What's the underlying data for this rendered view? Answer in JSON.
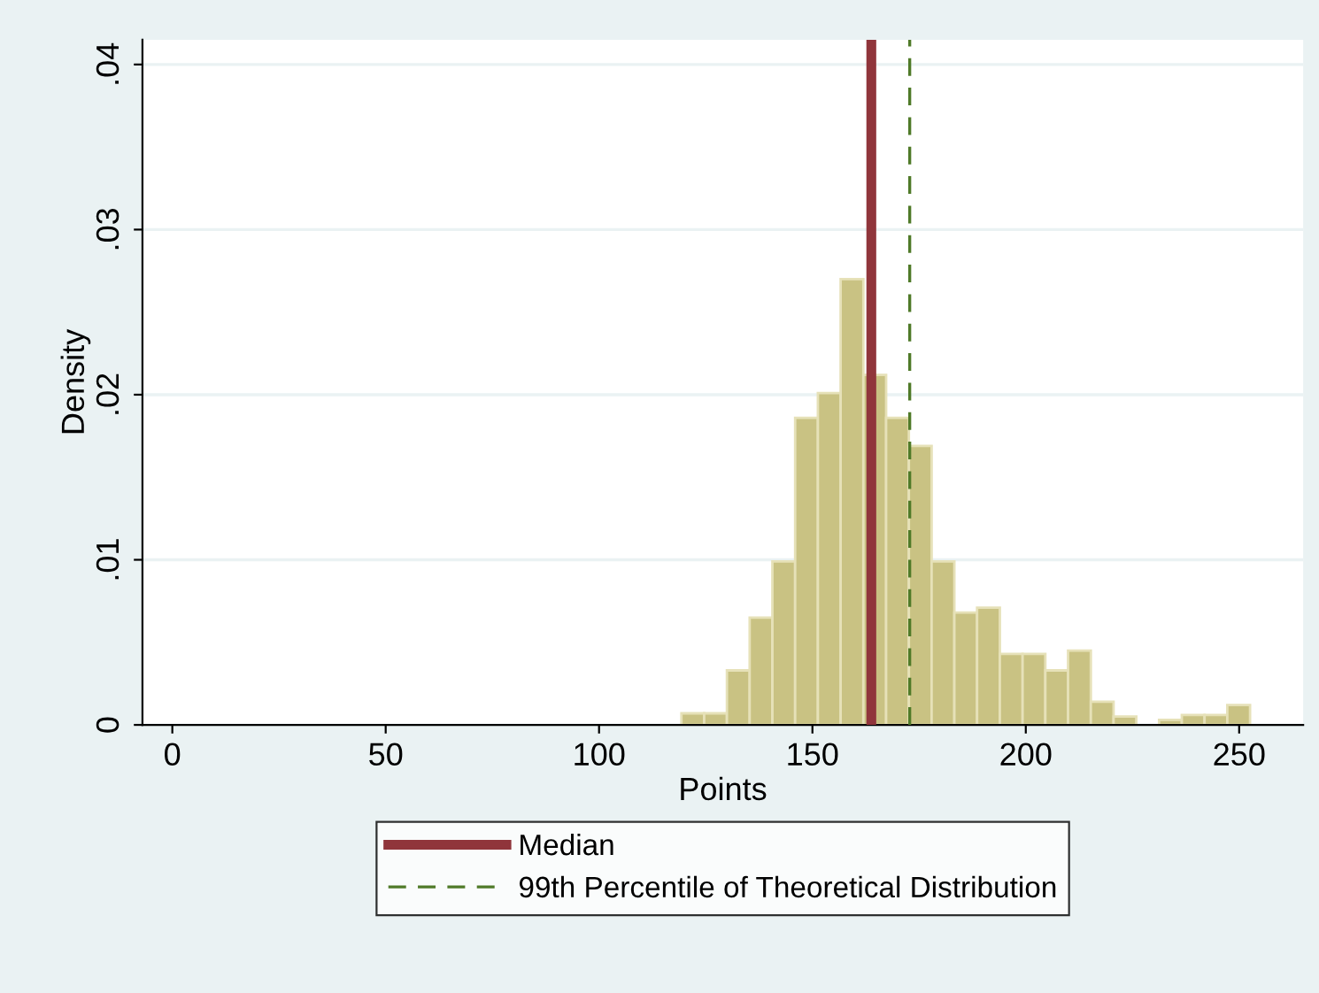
{
  "chart_data": {
    "type": "histogram",
    "xlabel": "Points",
    "ylabel": "Density",
    "bins": [
      119.3,
      124.63,
      129.96,
      135.29,
      140.62,
      145.95,
      151.28,
      156.61,
      161.94,
      167.27,
      172.6,
      177.93,
      183.26,
      188.59,
      193.92,
      199.25,
      204.58,
      209.91,
      215.24,
      220.57,
      225.9,
      231.23,
      236.56,
      241.89,
      247.22,
      252.55
    ],
    "values": [
      0.0007,
      0.0007,
      0.0033,
      0.0065,
      0.0099,
      0.0186,
      0.0201,
      0.027,
      0.0212,
      0.0186,
      0.0169,
      0.0099,
      0.0068,
      0.0071,
      0.0043,
      0.0043,
      0.0033,
      0.0045,
      0.0014,
      0.0005,
      0.0,
      0.0003,
      0.0006,
      0.0006,
      0.0012
    ],
    "color": "#c9c283",
    "xlim": [
      -7,
      265
    ],
    "ylim": [
      0,
      0.0415
    ],
    "xticks": [
      0,
      50,
      100,
      150,
      200,
      250
    ],
    "yticks": [
      0,
      {
        "value": 0.01,
        "label": ".01"
      },
      {
        "value": 0.02,
        "label": ".02"
      },
      {
        "value": 0.03,
        "label": ".03"
      },
      {
        "value": 0.04,
        "label": ".04"
      }
    ],
    "grid": "y",
    "ref_lines": [
      {
        "axis": "x",
        "value": 163.8,
        "label": "Median",
        "color": "#90353b",
        "line_style": "solid"
      },
      {
        "axis": "x",
        "value": 172.8,
        "label": "99th Percentile of Theoretical Distribution",
        "color": "#4f7a28",
        "line_style": "dashed"
      }
    ],
    "legend": "bottom"
  }
}
